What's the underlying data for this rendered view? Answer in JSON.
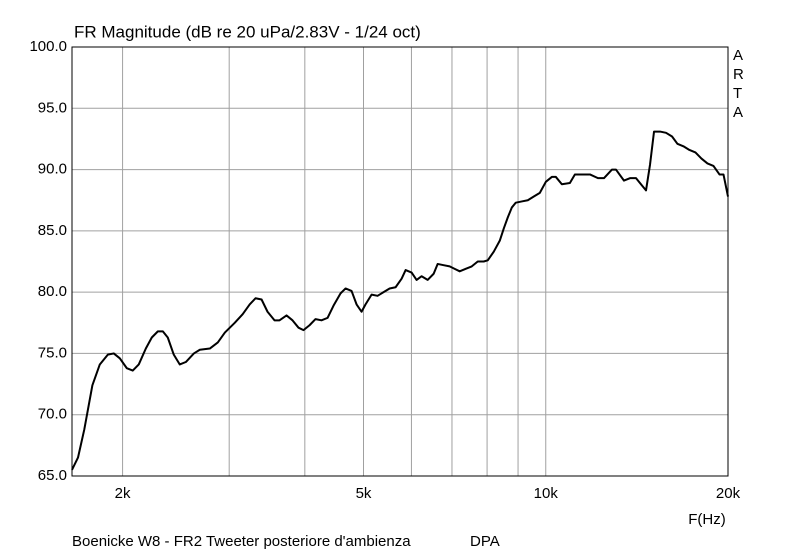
{
  "chart_data": {
    "type": "line",
    "title": "FR Magnitude (dB re 20 uPa/2.83V - 1/24 oct)",
    "watermark": "ARTA",
    "xlabel": "F(Hz)",
    "footer": [
      "Boenicke W8 - FR2 Tweeter posteriore d'ambienza",
      "DPA"
    ],
    "xscale": "log",
    "grid": true,
    "xlim": [
      1650,
      20000
    ],
    "ylim": [
      65,
      100
    ],
    "xticks": [
      {
        "value": 2000,
        "label": "2k"
      },
      {
        "value": 5000,
        "label": "5k"
      },
      {
        "value": 10000,
        "label": "10k"
      },
      {
        "value": 20000,
        "label": "20k"
      }
    ],
    "xgrid": [
      3000,
      4000,
      6000,
      7000,
      8000,
      9000
    ],
    "yticks": [
      {
        "value": 65,
        "label": "65.0"
      },
      {
        "value": 70,
        "label": "70.0"
      },
      {
        "value": 75,
        "label": "75.0"
      },
      {
        "value": 80,
        "label": "80.0"
      },
      {
        "value": 85,
        "label": "85.0"
      },
      {
        "value": 90,
        "label": "90.0"
      },
      {
        "value": 95,
        "label": "95.0"
      },
      {
        "value": 100,
        "label": "100.0"
      }
    ],
    "x": [
      1650,
      1688,
      1729,
      1783,
      1834,
      1891,
      1934,
      1979,
      2032,
      2079,
      2127,
      2185,
      2235,
      2287,
      2331,
      2375,
      2430,
      2486,
      2544,
      2623,
      2683,
      2787,
      2873,
      2951,
      3064,
      3158,
      3243,
      3316,
      3393,
      3471,
      3565,
      3633,
      3731,
      3817,
      3905,
      3980,
      4072,
      4166,
      4262,
      4361,
      4461,
      4582,
      4670,
      4778,
      4870,
      4963,
      5039,
      5156,
      5275,
      5397,
      5522,
      5649,
      5780,
      5869,
      6004,
      6119,
      6237,
      6381,
      6529,
      6629,
      6782,
      6939,
      7073,
      7209,
      7376,
      7546,
      7721,
      7899,
      8021,
      8206,
      8396,
      8525,
      8656,
      8788,
      8923,
      9129,
      9340,
      9556,
      9777,
      10003,
      10234,
      10391,
      10632,
      10961,
      11172,
      11476,
      11831,
      12196,
      12478,
      12864,
      13061,
      13466,
      13777,
      14095,
      14420,
      14642,
      14867,
      15095,
      15446,
      15802,
      16167,
      16500,
      16881,
      17272,
      17671,
      18079,
      18497,
      18925,
      19363,
      19659,
      20000
    ],
    "series": [
      {
        "name": "FR",
        "color": "#000000",
        "values": [
          65.5,
          66.5,
          68.8,
          72.4,
          74.1,
          74.9,
          75.0,
          74.6,
          73.8,
          73.6,
          74.1,
          75.4,
          76.3,
          76.8,
          76.8,
          76.3,
          74.9,
          74.1,
          74.3,
          75.0,
          75.3,
          75.4,
          75.9,
          76.7,
          77.5,
          78.2,
          79.0,
          79.5,
          79.4,
          78.4,
          77.7,
          77.7,
          78.1,
          77.7,
          77.1,
          76.9,
          77.3,
          77.8,
          77.7,
          77.9,
          78.9,
          79.9,
          80.3,
          80.1,
          79.0,
          78.4,
          79.0,
          79.8,
          79.7,
          80.0,
          80.3,
          80.4,
          81.1,
          81.8,
          81.6,
          81.0,
          81.3,
          81.0,
          81.5,
          82.3,
          82.2,
          82.1,
          81.9,
          81.7,
          81.9,
          82.1,
          82.5,
          82.5,
          82.6,
          83.3,
          84.2,
          85.2,
          86.1,
          86.9,
          87.3,
          87.4,
          87.5,
          87.8,
          88.1,
          89.0,
          89.4,
          89.4,
          88.8,
          88.9,
          89.6,
          89.6,
          89.6,
          89.3,
          89.3,
          90.0,
          90.0,
          89.1,
          89.3,
          89.3,
          88.7,
          88.3,
          90.4,
          93.1,
          93.1,
          93.0,
          92.7,
          92.1,
          91.9,
          91.6,
          91.4,
          90.9,
          90.5,
          90.3,
          89.6,
          89.6,
          87.8
        ]
      }
    ]
  }
}
